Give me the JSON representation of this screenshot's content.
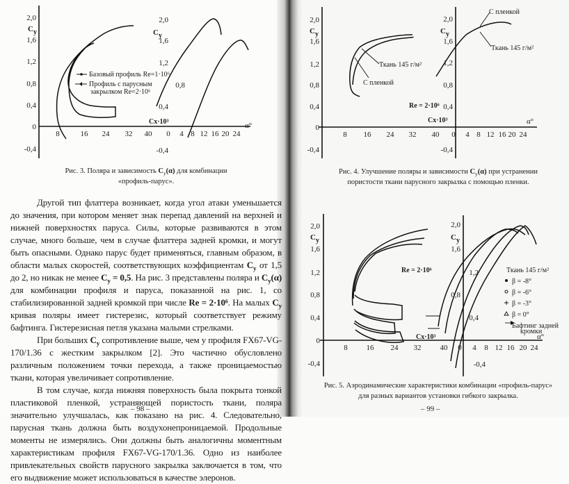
{
  "left_page": {
    "figure3": {
      "cy_label": {
        "main": "C",
        "sub": "y"
      },
      "polar_yticks": [
        "2,0",
        "1,6",
        "1,2",
        "0,8",
        "0,4",
        "0",
        "-0,4"
      ],
      "polar_xticks": [
        "8",
        "16",
        "24",
        "32"
      ],
      "alpha_yticks": [
        "2,0",
        "1,6",
        "1,2",
        "0,8",
        "0,4",
        "-0,4"
      ],
      "alpha_xticks": [
        "40",
        "0",
        "4",
        "8",
        "12",
        "16",
        "20",
        "24"
      ],
      "cx_label": "Cx·10³",
      "alpha_label": "α°",
      "legend": [
        {
          "text": "Базовый профиль Re=1·10⁶",
          "marker": "dot"
        },
        {
          "text": "Профиль с парусным",
          "text2": "закрылком Re=2·10⁶",
          "marker": "arrow"
        }
      ],
      "caption_line1": "Рис. 3. Поляра и зависимость ",
      "caption_bold": "C",
      "caption_sub": "y",
      "caption_bold2": "(α)",
      "caption_line1_end": " для комбинации",
      "caption_line2": "«профиль-парус»."
    },
    "paragraphs": [
      [
        {
          "t": "Другой тип флаттера возникает, когда угол атаки уменьшается до значения, при котором меняет знак перепад давлений на верхней и нижней поверхностях паруса. Силы, которые развиваются в этом случае, много больше, чем в случае флаттера задней кромки, и могут быть опасными. Однако парус будет применяться, главным образом, в области малых скоростей, соответствующих коэффициентам "
        },
        {
          "t": "C",
          "sub": "y",
          "b": true
        },
        {
          "t": " от 1,5 до 2, но никак не менее "
        },
        {
          "t": "C",
          "sub": "y",
          "b": true
        },
        {
          "t": " = 0,5",
          "b": true
        },
        {
          "t": ". На рис. 3 представлены поляра и "
        },
        {
          "t": "C",
          "sub": "y",
          "b": true
        },
        {
          "t": "(α)",
          "b": true
        },
        {
          "t": " для комбинации профиля и паруса, показанной на рис. 1, со стабилизированной задней кромкой при числе "
        },
        {
          "t": "Re = 2·10⁶",
          "b": true
        },
        {
          "t": ". На малых "
        },
        {
          "t": "C",
          "sub": "y",
          "b": true
        },
        {
          "t": " кривая поляры имеет гистерезис, который соответствует режиму бафтинга. Гистерезисная петля указана малыми стрелками."
        }
      ],
      [
        {
          "t": "При больших "
        },
        {
          "t": "C",
          "sub": "y",
          "b": true
        },
        {
          "t": " сопротивление выше, чем у профиля FX67-VG-170/1.36 с жестким закрылком [2]. Это частично обусловлено различным положением точки перехода, а также проницаемостью ткани, которая увеличивает сопротивление."
        }
      ],
      [
        {
          "t": "В том случае, когда нижняя поверхность была покрыта тонкой пластиковой пленкой, устраняющей пористость ткани, поляра значительно улучшалась, как показано на рис. 4. Следовательно, парусная ткань должна быть воздухонепроницаемой. Продольные моменты не измерялись. Они должны быть аналогичны моментным характеристикам профиля FX67-VG-170/1.36. Одно из наиболее привлекательных свойств парусного закрылка заключается в том, что его выдвижение может использоваться в качестве элеронов."
        }
      ]
    ],
    "page_number": "– 98 –"
  },
  "right_page": {
    "figure4": {
      "cy_label": {
        "main": "C",
        "sub": "y"
      },
      "polar_yticks": [
        "2,0",
        "1,6",
        "1,2",
        "0,8",
        "0,4",
        "0",
        "-0,4"
      ],
      "polar_xticks": [
        "8",
        "16",
        "24",
        "32"
      ],
      "alpha_yticks": [
        "2,0",
        "1,6",
        "1,2",
        "0,8",
        "0,4",
        "-0,4"
      ],
      "alpha_xticks": [
        "40",
        "0",
        "4",
        "8",
        "12",
        "16",
        "20",
        "24"
      ],
      "cx_label": "Cx·10³",
      "alpha_label": "α°",
      "re_label": "Re = 2·10⁶",
      "label_fabric": "Ткань 145 г/м²",
      "label_film": "С пленкой",
      "caption_line1": "Рис. 4.  Улучшение поляры и зависимости ",
      "caption_bold": "C",
      "caption_sub": "y",
      "caption_bold2": "(α)",
      "caption_line1_end": " при устранении",
      "caption_line2": "пористости ткани парусного закрылка с помощью пленки."
    },
    "figure5": {
      "cy_label": {
        "main": "C",
        "sub": "y"
      },
      "polar_yticks": [
        "2,0",
        "1,6",
        "1,2",
        "0,8",
        "0,4",
        "0",
        "-0,4"
      ],
      "polar_xticks": [
        "8",
        "16",
        "24",
        "32"
      ],
      "alpha_yticks": [
        "2,0",
        "1,6",
        "1,2",
        "0,8",
        "0,4",
        "-0,4"
      ],
      "alpha_xticks": [
        "40",
        "0",
        "4",
        "8",
        "12",
        "16",
        "20",
        "24"
      ],
      "cx_label": "Cx·10³",
      "alpha_label": "α°",
      "re_label": "Re = 2·10⁶",
      "legend_title": "Ткань 145 г/м²",
      "legend": [
        {
          "marker": "filled-dot",
          "text": "β = -8°"
        },
        {
          "marker": "open-circle",
          "text": "β = -6°"
        },
        {
          "marker": "plus",
          "text": "β = -3°"
        },
        {
          "marker": "triangle",
          "text": "β = 0°"
        },
        {
          "marker": "arrow",
          "text": "Бафтинг задней",
          "text2": "кромки"
        }
      ],
      "caption_line1": "Рис. 5.  Аэродинамические характеристики комбинации «профиль-парус»",
      "caption_line2": "для разных вариантов установки гибкого закрылка."
    },
    "page_number": "– 99 –"
  }
}
